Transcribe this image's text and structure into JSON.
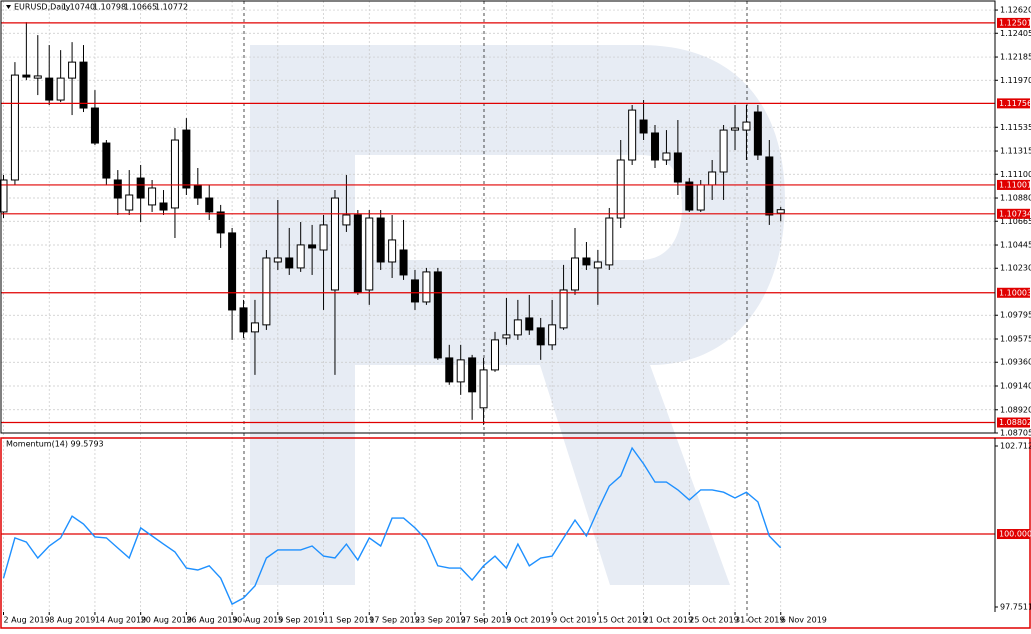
{
  "chart_data": [
    {
      "type": "candlestick",
      "title": "EURUSD,Daily",
      "header_values": [
        "1.10740",
        "1.10798",
        "1.10665",
        "1.10772"
      ],
      "categories": [
        "2 Aug 2019",
        null,
        null,
        null,
        "8 Aug 2019",
        null,
        null,
        null,
        "14 Aug 2019",
        null,
        null,
        null,
        "20 Aug 2019",
        null,
        null,
        null,
        "26 Aug 2019",
        null,
        null,
        null,
        "30 Aug 2019",
        null,
        null,
        null,
        "5 Sep 2019",
        null,
        null,
        null,
        "11 Sep 2019",
        null,
        null,
        null,
        "17 Sep 2019",
        null,
        null,
        null,
        "23 Sep 2019",
        null,
        null,
        null,
        "27 Sep 2019",
        null,
        null,
        null,
        "3 Oct 2019",
        null,
        null,
        null,
        "9 Oct 2019",
        null,
        null,
        null,
        "15 Oct 2019",
        null,
        null,
        null,
        "21 Oct 2019",
        null,
        null,
        null,
        "25 Oct 2019",
        null,
        null,
        null,
        "31 Oct 2019",
        null,
        null,
        null,
        "6 Nov 2019"
      ],
      "open": [
        1.10751,
        1.11047,
        1.12018,
        1.1199,
        1.1199,
        1.11787,
        1.1199,
        1.12138,
        1.11713,
        1.11389,
        1.11047,
        1.10769,
        1.11065,
        1.10816,
        1.10834,
        1.10788,
        1.11509,
        1.11001,
        1.1088,
        1.10751,
        1.10557,
        1.09863,
        1.09641,
        1.09706,
        1.10288,
        1.10325,
        1.10233,
        1.10446,
        1.10399,
        1.10029,
        1.10631,
        1.10723,
        1.10029,
        1.10695,
        1.10288,
        1.10399,
        1.10122,
        1.09918,
        1.10196,
        1.094,
        1.09178,
        1.094,
        1.08938,
        1.09289,
        1.09585,
        1.09613,
        1.0977,
        1.09678,
        1.09521,
        1.09678,
        1.10029,
        1.10325,
        1.10233,
        1.10261,
        1.10695,
        1.11232,
        1.11602,
        1.11482,
        1.11232,
        1.11297,
        1.11028,
        1.10769,
        1.11001,
        1.11121,
        1.11509,
        1.11509,
        1.11676,
        1.1126,
        1.1074
      ],
      "high": [
        1.11093,
        1.12138,
        1.12508,
        1.12388,
        1.12296,
        1.12249,
        1.12323,
        1.12296,
        1.11879,
        1.11417,
        1.11139,
        1.11139,
        1.11186,
        1.11047,
        1.10954,
        1.11528,
        1.1162,
        1.11158,
        1.11001,
        1.10816,
        1.10603,
        1.09937,
        1.09937,
        1.10399,
        1.10862,
        1.10603,
        1.10658,
        1.10631,
        1.10723,
        1.10954,
        1.11093,
        1.10769,
        1.10769,
        1.10769,
        1.10723,
        1.10677,
        1.10214,
        1.10233,
        1.10233,
        1.09521,
        1.09521,
        1.09428,
        1.094,
        1.09641,
        1.09955,
        1.09937,
        1.09983,
        1.0977,
        1.09937,
        1.10261,
        1.10603,
        1.10473,
        1.10399,
        1.10788,
        1.11417,
        1.11741,
        1.11787,
        1.11556,
        1.11509,
        1.11602,
        1.11065,
        1.11047,
        1.11232,
        1.11556,
        1.11741,
        1.11741,
        1.11741,
        1.11417,
        1.10798
      ],
      "low": [
        1.10695,
        1.11001,
        1.11972,
        1.11833,
        1.11741,
        1.11768,
        1.11648,
        1.11676,
        1.11371,
        1.11001,
        1.10723,
        1.10723,
        1.10658,
        1.10751,
        1.10723,
        1.1051,
        1.10908,
        1.10816,
        1.10677,
        1.10418,
        1.09567,
        1.09585,
        1.09243,
        1.09659,
        1.10214,
        1.10168,
        1.10196,
        1.10168,
        1.09844,
        1.09243,
        1.10566,
        1.09983,
        1.09891,
        1.10214,
        1.1014,
        1.10122,
        1.09844,
        1.09891,
        1.09382,
        1.09151,
        1.09058,
        1.08827,
        1.08781,
        1.09271,
        1.09521,
        1.09567,
        1.09613,
        1.09382,
        1.09474,
        1.09659,
        1.09983,
        1.10214,
        1.09891,
        1.10214,
        1.10603,
        1.11186,
        1.11417,
        1.11158,
        1.11186,
        1.10908,
        1.10751,
        1.10751,
        1.10862,
        1.10862,
        1.11324,
        1.11232,
        1.11232,
        1.10631,
        1.10665
      ],
      "close": [
        1.11047,
        1.12018,
        1.12,
        1.1201,
        1.11787,
        1.1199,
        1.12138,
        1.11713,
        1.11389,
        1.11065,
        1.1088,
        1.10908,
        1.1088,
        1.10973,
        1.10769,
        1.11417,
        1.10973,
        1.1088,
        1.10751,
        1.10557,
        1.09844,
        1.09641,
        1.09724,
        1.10325,
        1.10325,
        1.10233,
        1.10446,
        1.10418,
        1.10631,
        1.1088,
        1.10723,
        1.10011,
        1.10695,
        1.10288,
        1.10492,
        1.10168,
        1.09918,
        1.10196,
        1.094,
        1.09178,
        1.09382,
        1.09086,
        1.09289,
        1.09567,
        1.09613,
        1.09752,
        1.09659,
        1.09521,
        1.09706,
        1.10029,
        1.10325,
        1.10261,
        1.10288,
        1.10695,
        1.11232,
        1.11694,
        1.11482,
        1.11232,
        1.11297,
        1.11028,
        1.10769,
        1.11001,
        1.11121,
        1.11509,
        1.11528,
        1.11583,
        1.11278,
        1.10723,
        1.10772
      ],
      "ylim": [
        1.08705,
        1.12713
      ],
      "yticks": [
        {
          "value": 1.1262,
          "label": "1.12620"
        },
        {
          "value": 1.12405,
          "label": "1.12405"
        },
        {
          "value": 1.12185,
          "label": "1.12185"
        },
        {
          "value": 1.1197,
          "label": "1.11970"
        },
        {
          "value": 1.11535,
          "label": "1.11535"
        },
        {
          "value": 1.11315,
          "label": "1.11315"
        },
        {
          "value": 1.111,
          "label": "1.11100"
        },
        {
          "value": 1.1088,
          "label": "1.10880"
        },
        {
          "value": 1.10665,
          "label": "1.10665"
        },
        {
          "value": 1.10445,
          "label": "1.10445"
        },
        {
          "value": 1.1023,
          "label": "1.10230"
        },
        {
          "value": 1.09795,
          "label": "1.09795"
        },
        {
          "value": 1.09575,
          "label": "1.09575"
        },
        {
          "value": 1.0936,
          "label": "1.09360"
        },
        {
          "value": 1.0914,
          "label": "1.09140"
        },
        {
          "value": 1.0892,
          "label": "1.08920"
        },
        {
          "value": 1.08705,
          "label": "1.08705"
        }
      ],
      "levels": [
        {
          "value": 1.12501,
          "label": "1.12501"
        },
        {
          "value": 1.11756,
          "label": "1.11756"
        },
        {
          "value": 1.11001,
          "label": "1.11001"
        },
        {
          "value": 1.10734,
          "label": "1.10734"
        },
        {
          "value": 1.10003,
          "label": "1.10003"
        },
        {
          "value": 1.08802,
          "label": "1.08802"
        }
      ],
      "grid": true,
      "colors": {
        "up": "#ffffff",
        "down": "#000000",
        "level": "#e00000"
      }
    },
    {
      "type": "line",
      "title": "Momentum(14) 99.5793",
      "values": [
        98.64,
        99.88,
        99.75,
        99.26,
        99.63,
        99.88,
        100.55,
        100.31,
        99.91,
        99.88,
        99.57,
        99.26,
        100.19,
        99.94,
        99.69,
        99.45,
        98.95,
        98.89,
        99.02,
        98.64,
        97.84,
        98.03,
        98.4,
        99.26,
        99.51,
        99.51,
        99.51,
        99.63,
        99.32,
        99.26,
        99.69,
        99.2,
        99.88,
        99.63,
        100.49,
        100.49,
        100.19,
        99.82,
        99.02,
        98.95,
        98.95,
        98.58,
        99.02,
        99.32,
        98.95,
        99.69,
        99.02,
        99.26,
        99.32,
        99.88,
        100.43,
        99.94,
        100.74,
        101.48,
        101.79,
        102.65,
        102.16,
        101.6,
        101.6,
        101.36,
        101.05,
        101.36,
        101.36,
        101.29,
        101.11,
        101.29,
        100.99,
        99.94,
        99.5793
      ],
      "color": "#1e90ff",
      "ylim": [
        97.289,
        102.897
      ],
      "yticks": [
        102.712,
        97.7511
      ],
      "levels": [
        {
          "value": 100,
          "label": "100.0000"
        }
      ],
      "level_color": "#e00000"
    }
  ]
}
